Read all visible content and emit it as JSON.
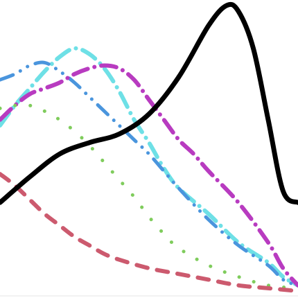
{
  "chart_data": {
    "type": "line",
    "title": "",
    "xlabel": "",
    "ylabel": "",
    "xlim": [
      0,
      10
    ],
    "ylim": [
      0,
      1
    ],
    "grid": false,
    "legend": "none",
    "series": [
      {
        "color": "#000000",
        "style": "solid",
        "x": [
          0,
          1,
          2,
          3,
          4,
          5,
          6,
          7,
          7.6,
          8,
          8.5,
          9,
          9.5,
          10
        ],
        "y": [
          0.31,
          0.4,
          0.48,
          0.52,
          0.55,
          0.62,
          0.75,
          0.93,
          1.0,
          0.98,
          0.85,
          0.6,
          0.35,
          0.31
        ]
      },
      {
        "color": "#6ee0e6",
        "style": "dashdot",
        "x": [
          0,
          0.5,
          1,
          1.5,
          2,
          2.5,
          3,
          3.5,
          4,
          4.5,
          5,
          5.5,
          6,
          7,
          8,
          9,
          9.5,
          10
        ],
        "y": [
          0.58,
          0.65,
          0.71,
          0.77,
          0.82,
          0.85,
          0.83,
          0.78,
          0.7,
          0.6,
          0.52,
          0.43,
          0.36,
          0.27,
          0.17,
          0.1,
          0.05,
          0.02
        ]
      },
      {
        "color": "#4a95dd",
        "style": "dashdotdot",
        "x": [
          0,
          0.5,
          1,
          1.5,
          2,
          2.5,
          3,
          3.5,
          4,
          4.5,
          5,
          5.5,
          6,
          7,
          8,
          9,
          9.5,
          10
        ],
        "y": [
          0.74,
          0.76,
          0.79,
          0.8,
          0.77,
          0.73,
          0.68,
          0.63,
          0.58,
          0.53,
          0.48,
          0.42,
          0.36,
          0.25,
          0.16,
          0.09,
          0.04,
          0.02
        ]
      },
      {
        "color": "#b83bc0",
        "style": "dashdot",
        "x": [
          0,
          0.5,
          1,
          1.5,
          2,
          2.5,
          3,
          3.5,
          4,
          4.5,
          5,
          5.5,
          6,
          6.5,
          7,
          8,
          9,
          9.5,
          10
        ],
        "y": [
          0.6,
          0.65,
          0.69,
          0.71,
          0.73,
          0.76,
          0.78,
          0.79,
          0.78,
          0.74,
          0.67,
          0.6,
          0.53,
          0.48,
          0.42,
          0.31,
          0.17,
          0.08,
          0.02
        ]
      },
      {
        "color": "#7fcc5c",
        "style": "dotted",
        "x": [
          0,
          0.5,
          1,
          1.5,
          2,
          2.5,
          3,
          3.5,
          4,
          4.5,
          5,
          5.5,
          6,
          7,
          8,
          9,
          10
        ],
        "y": [
          0.64,
          0.65,
          0.65,
          0.63,
          0.6,
          0.56,
          0.51,
          0.45,
          0.39,
          0.33,
          0.26,
          0.2,
          0.15,
          0.09,
          0.05,
          0.02,
          0.01
        ]
      },
      {
        "color": "#cc5a6e",
        "style": "dashed",
        "x": [
          0,
          0.5,
          1,
          1.5,
          2,
          2.5,
          3,
          3.5,
          4,
          5,
          6,
          7,
          8,
          9,
          10
        ],
        "y": [
          0.41,
          0.37,
          0.32,
          0.27,
          0.23,
          0.19,
          0.16,
          0.13,
          0.11,
          0.08,
          0.06,
          0.04,
          0.02,
          0.01,
          0.0
        ]
      }
    ]
  }
}
